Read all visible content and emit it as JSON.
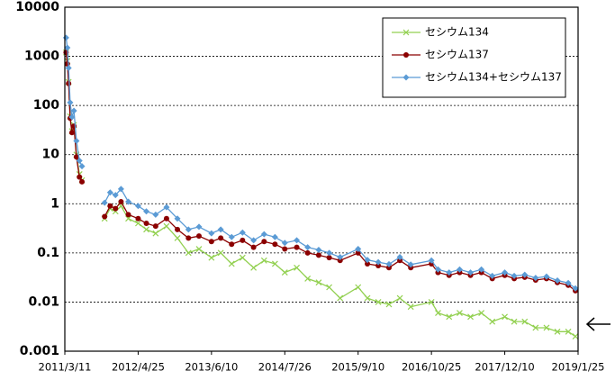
{
  "chart_data": {
    "type": "line",
    "log_y": true,
    "grid": true,
    "legend": "upper right",
    "x": [
      "2011/3/18",
      "2011/3/25",
      "2011/4/1",
      "2011/4/10",
      "2011/4/20",
      "2011/5/1",
      "2011/5/15",
      "2011/6/1",
      "2011/6/15",
      "2011/8/1",
      "2011/10/20",
      "2011/11/20",
      "2011/12/20",
      "2012/1/20",
      "2012/3/1",
      "2012/4/25",
      "2012/6/10",
      "2012/8/1",
      "2012/10/1",
      "2012/12/1",
      "2013/2/1",
      "2013/4/1",
      "2013/6/10",
      "2013/8/1",
      "2013/10/1",
      "2013/12/1",
      "2014/2/1",
      "2014/4/1",
      "2014/6/1",
      "2014/7/26",
      "2014/10/1",
      "2014/12/1",
      "2015/2/1",
      "2015/4/1",
      "2015/6/1",
      "2015/9/10",
      "2015/11/1",
      "2016/1/1",
      "2016/3/1",
      "2016/5/1",
      "2016/7/1",
      "2016/10/25",
      "2016/12/1",
      "2017/2/1",
      "2017/4/1",
      "2017/6/1",
      "2017/8/1",
      "2017/10/1",
      "2017/12/10",
      "2018/2/1",
      "2018/4/1",
      "2018/6/1",
      "2018/8/1",
      "2018/10/1",
      "2018/12/1",
      "2019/1/10"
    ],
    "series": [
      {
        "name": "セシウム134",
        "color": "#92d050",
        "marker": "x",
        "values": [
          1200,
          800,
          300,
          60,
          30,
          40,
          10,
          4,
          3,
          null,
          0.5,
          0.8,
          0.7,
          0.9,
          0.5,
          0.4,
          0.3,
          0.25,
          0.35,
          0.2,
          0.1,
          0.12,
          0.08,
          0.1,
          0.06,
          0.08,
          0.05,
          0.07,
          0.06,
          0.04,
          0.05,
          0.03,
          0.025,
          0.02,
          0.012,
          0.02,
          0.012,
          0.01,
          0.009,
          0.012,
          0.008,
          0.01,
          0.006,
          0.005,
          0.006,
          0.005,
          0.006,
          0.004,
          0.005,
          0.004,
          0.004,
          0.003,
          0.003,
          0.0025,
          0.0025,
          0.002
        ]
      },
      {
        "name": "セシウム137",
        "color": "#8b0000",
        "marker": "circle",
        "values": [
          1200,
          700,
          280,
          55,
          28,
          38,
          9,
          3.5,
          2.8,
          null,
          0.55,
          0.9,
          0.8,
          1.1,
          0.6,
          0.5,
          0.4,
          0.35,
          0.5,
          0.3,
          0.2,
          0.22,
          0.17,
          0.2,
          0.15,
          0.18,
          0.13,
          0.17,
          0.15,
          0.12,
          0.13,
          0.1,
          0.09,
          0.08,
          0.07,
          0.1,
          0.06,
          0.055,
          0.05,
          0.07,
          0.05,
          0.06,
          0.04,
          0.035,
          0.04,
          0.035,
          0.04,
          0.03,
          0.035,
          0.03,
          0.032,
          0.028,
          0.03,
          0.025,
          0.022,
          0.017
        ]
      },
      {
        "name": "セシウム134+セシウム137",
        "color": "#5b9bd5",
        "marker": "diamond",
        "values": [
          2400,
          1500,
          580,
          115,
          58,
          78,
          19,
          7.5,
          5.8,
          null,
          1.05,
          1.7,
          1.5,
          2.0,
          1.1,
          0.9,
          0.7,
          0.6,
          0.85,
          0.5,
          0.3,
          0.34,
          0.25,
          0.3,
          0.21,
          0.26,
          0.18,
          0.24,
          0.21,
          0.16,
          0.18,
          0.13,
          0.115,
          0.1,
          0.082,
          0.12,
          0.072,
          0.065,
          0.059,
          0.082,
          0.058,
          0.07,
          0.046,
          0.04,
          0.046,
          0.04,
          0.046,
          0.034,
          0.04,
          0.034,
          0.036,
          0.031,
          0.033,
          0.0275,
          0.0245,
          0.019
        ]
      }
    ],
    "xlim": [
      "2011/3/11",
      "2019/1/25"
    ],
    "xticks": [
      "2011/3/11",
      "2012/4/25",
      "2013/6/10",
      "2014/7/26",
      "2015/9/10",
      "2016/10/25",
      "2017/12/10",
      "2019/1/25"
    ],
    "ylim": [
      0.001,
      10000
    ],
    "yticks": [
      0.001,
      0.01,
      0.1,
      1,
      10,
      100,
      1000,
      10000
    ]
  }
}
